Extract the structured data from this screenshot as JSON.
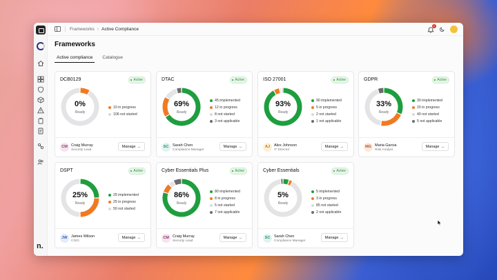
{
  "colors": {
    "implemented": "#1e9e3e",
    "in_progress": "#f07a22",
    "not_started": "#e4e4e6",
    "not_applicable": "#6b6b6e",
    "active_badge": "#2f8f3a"
  },
  "breadcrumb": {
    "parent": "Frameworks",
    "current": "Active Compliance"
  },
  "notifications": {
    "count": "1"
  },
  "page": {
    "title": "Frameworks"
  },
  "tabs": [
    {
      "label": "Active compliance",
      "active": true
    },
    {
      "label": "Catalogue",
      "active": false
    }
  ],
  "frameworks": [
    {
      "name": "DCB0129",
      "status": "Active",
      "percent": "0%",
      "ready": "Ready",
      "segments": {
        "implemented": 0,
        "in_progress": 10,
        "not_started": 106,
        "not_applicable": 0
      },
      "legend": [
        "10 in progress",
        "106 not started"
      ],
      "owner": {
        "initials": "CM",
        "name": "Craig Murray",
        "role": "Security Lead"
      },
      "manage": "Manage"
    },
    {
      "name": "DTAC",
      "status": "Active",
      "percent": "69%",
      "ready": "Ready",
      "segments": {
        "implemented": 45,
        "in_progress": 12,
        "not_started": 8,
        "not_applicable": 3
      },
      "legend": [
        "45 implemented",
        "12 in progress",
        "8 not started",
        "3 not applicable"
      ],
      "owner": {
        "initials": "SC",
        "name": "Sarah Chen",
        "role": "Compliance Manager"
      },
      "manage": "Manage"
    },
    {
      "name": "ISO 27001",
      "status": "Active",
      "percent": "93%",
      "ready": "Ready",
      "segments": {
        "implemented": 90,
        "in_progress": 5,
        "not_started": 2,
        "not_applicable": 1
      },
      "legend": [
        "90 implemented",
        "5 in progress",
        "2 not started",
        "1 not applicable"
      ],
      "owner": {
        "initials": "AJ",
        "name": "Alex Johnson",
        "role": "IT Director"
      },
      "manage": "Manage"
    },
    {
      "name": "GDPR",
      "status": "Active",
      "percent": "33%",
      "ready": "Ready",
      "segments": {
        "implemented": 30,
        "in_progress": 20,
        "not_started": 40,
        "not_applicable": 5
      },
      "legend": [
        "30 implemented",
        "20 in progress",
        "40 not started",
        "5 not applicable"
      ],
      "owner": {
        "initials": "MG",
        "name": "Maria Garcia",
        "role": "Risk Analyst"
      },
      "manage": "Manage"
    },
    {
      "name": "DSPT",
      "status": "Active",
      "percent": "25%",
      "ready": "Ready",
      "segments": {
        "implemented": 25,
        "in_progress": 25,
        "not_started": 50,
        "not_applicable": 0
      },
      "legend": [
        "25 implemented",
        "25 in progress",
        "50 not started"
      ],
      "owner": {
        "initials": "JW",
        "name": "James Wilson",
        "role": "CISO"
      },
      "manage": "Manage"
    },
    {
      "name": "Cyber Essentials Plus",
      "status": "Active",
      "percent": "86%",
      "ready": "Ready",
      "segments": {
        "implemented": 80,
        "in_progress": 8,
        "not_started": 5,
        "not_applicable": 7
      },
      "legend": [
        "80 implemented",
        "8 in progress",
        "5 not started",
        "7 not applicable"
      ],
      "owner": {
        "initials": "CM",
        "name": "Craig Murray",
        "role": "Security Lead"
      },
      "manage": "Manage"
    },
    {
      "name": "Cyber Essentials",
      "status": "Active",
      "percent": "5%",
      "ready": "Ready",
      "segments": {
        "implemented": 5,
        "in_progress": 3,
        "not_started": 85,
        "not_applicable": 2
      },
      "legend": [
        "5 implemented",
        "3 in progress",
        "85 not started",
        "2 not applicable"
      ],
      "owner": {
        "initials": "SC",
        "name": "Sarah Chen",
        "role": "Compliance Manager"
      },
      "manage": "Manage"
    }
  ],
  "avatar_colors": {
    "CM": [
      "#f4e4ee",
      "#8a3d6a"
    ],
    "SC": [
      "#e0f3ef",
      "#2d8a74"
    ],
    "AJ": [
      "#fdf0d7",
      "#b37a14"
    ],
    "MG": [
      "#fbe8dc",
      "#b1562a"
    ],
    "JW": [
      "#e3ecfb",
      "#3a5fb0"
    ]
  },
  "brand": {
    "logo_letter": "n."
  }
}
